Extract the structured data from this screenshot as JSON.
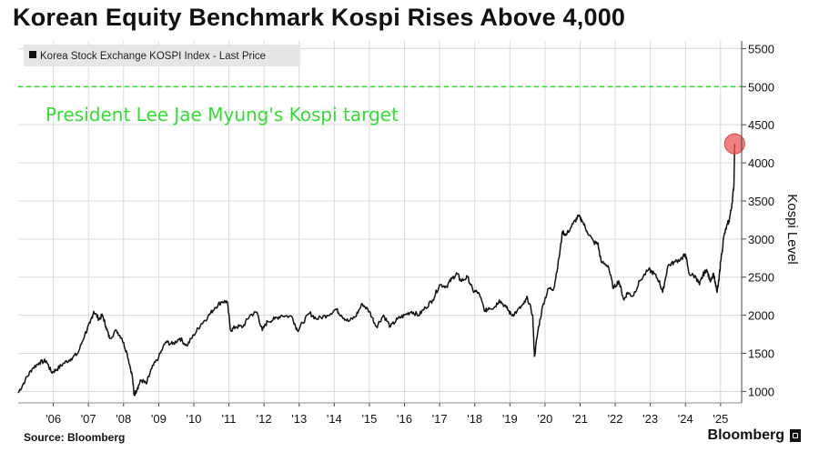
{
  "title": "Korean Equity Benchmark Kospi Rises Above 4,000",
  "source": "Source: Bloomberg",
  "brand": "Bloomberg",
  "colors": {
    "line": "#111111",
    "target": "#33dd33",
    "marker": "#ee5555",
    "grid": "#d9d9d9",
    "legendBox": "#e6e6e6"
  },
  "chart_data": {
    "type": "line",
    "title": "Korean Equity Benchmark Kospi Rises Above 4,000",
    "legend": "Korea Stock Exchange KOSPI Index - Last Price",
    "xlabel": "",
    "ylabel": "Kospi Level",
    "ylim": [
      850,
      5600
    ],
    "xlim": [
      2005.5,
      2026.1
    ],
    "yticks": [
      1000,
      1500,
      2000,
      2500,
      3000,
      3500,
      4000,
      4500,
      5000,
      5500
    ],
    "xticks": [
      {
        "label": "'06",
        "value": 2006.5
      },
      {
        "label": "'07",
        "value": 2007.5
      },
      {
        "label": "'08",
        "value": 2008.5
      },
      {
        "label": "'09",
        "value": 2009.5
      },
      {
        "label": "'10",
        "value": 2010.5
      },
      {
        "label": "'11",
        "value": 2011.5
      },
      {
        "label": "'12",
        "value": 2012.5
      },
      {
        "label": "'13",
        "value": 2013.5
      },
      {
        "label": "'14",
        "value": 2014.5
      },
      {
        "label": "'15",
        "value": 2015.5
      },
      {
        "label": "'16",
        "value": 2016.5
      },
      {
        "label": "'17",
        "value": 2017.5
      },
      {
        "label": "'18",
        "value": 2018.5
      },
      {
        "label": "'19",
        "value": 2019.5
      },
      {
        "label": "'20",
        "value": 2020.5
      },
      {
        "label": "'21",
        "value": 2021.5
      },
      {
        "label": "'22",
        "value": 2022.5
      },
      {
        "label": "'23",
        "value": 2023.5
      },
      {
        "label": "'24",
        "value": 2024.5
      },
      {
        "label": "'25",
        "value": 2025.5
      }
    ],
    "target": {
      "value": 5000,
      "label": "President Lee Jae Myung's Kospi target"
    },
    "highlight": {
      "x": 2025.9,
      "y": 4250
    },
    "series": [
      {
        "name": "Korea Stock Exchange KOSPI Index - Last Price",
        "points": [
          [
            2005.5,
            980
          ],
          [
            2005.7,
            1150
          ],
          [
            2005.9,
            1300
          ],
          [
            2006.1,
            1380
          ],
          [
            2006.3,
            1400
          ],
          [
            2006.45,
            1250
          ],
          [
            2006.6,
            1290
          ],
          [
            2006.8,
            1370
          ],
          [
            2007.0,
            1430
          ],
          [
            2007.2,
            1500
          ],
          [
            2007.4,
            1750
          ],
          [
            2007.55,
            1900
          ],
          [
            2007.65,
            2050
          ],
          [
            2007.8,
            1950
          ],
          [
            2007.9,
            2000
          ],
          [
            2008.0,
            1850
          ],
          [
            2008.1,
            1700
          ],
          [
            2008.3,
            1800
          ],
          [
            2008.45,
            1700
          ],
          [
            2008.6,
            1500
          ],
          [
            2008.75,
            1200
          ],
          [
            2008.8,
            950
          ],
          [
            2008.9,
            1050
          ],
          [
            2009.0,
            1150
          ],
          [
            2009.15,
            1100
          ],
          [
            2009.3,
            1300
          ],
          [
            2009.5,
            1450
          ],
          [
            2009.7,
            1650
          ],
          [
            2009.9,
            1620
          ],
          [
            2010.1,
            1700
          ],
          [
            2010.3,
            1600
          ],
          [
            2010.5,
            1740
          ],
          [
            2010.7,
            1880
          ],
          [
            2010.9,
            1980
          ],
          [
            2011.1,
            2100
          ],
          [
            2011.3,
            2180
          ],
          [
            2011.45,
            2180
          ],
          [
            2011.55,
            1800
          ],
          [
            2011.7,
            1850
          ],
          [
            2011.9,
            1850
          ],
          [
            2012.1,
            2000
          ],
          [
            2012.3,
            2040
          ],
          [
            2012.45,
            1800
          ],
          [
            2012.6,
            1920
          ],
          [
            2012.8,
            1950
          ],
          [
            2013.0,
            2000
          ],
          [
            2013.3,
            1980
          ],
          [
            2013.45,
            1800
          ],
          [
            2013.6,
            1900
          ],
          [
            2013.8,
            2030
          ],
          [
            2014.0,
            1950
          ],
          [
            2014.3,
            2000
          ],
          [
            2014.55,
            2080
          ],
          [
            2014.7,
            2000
          ],
          [
            2014.9,
            1920
          ],
          [
            2015.1,
            1980
          ],
          [
            2015.3,
            2150
          ],
          [
            2015.5,
            2050
          ],
          [
            2015.7,
            1850
          ],
          [
            2015.9,
            2000
          ],
          [
            2016.1,
            1850
          ],
          [
            2016.3,
            1950
          ],
          [
            2016.5,
            2000
          ],
          [
            2016.7,
            2050
          ],
          [
            2016.9,
            2000
          ],
          [
            2017.1,
            2100
          ],
          [
            2017.3,
            2200
          ],
          [
            2017.5,
            2400
          ],
          [
            2017.7,
            2380
          ],
          [
            2017.85,
            2480
          ],
          [
            2018.0,
            2550
          ],
          [
            2018.1,
            2450
          ],
          [
            2018.3,
            2500
          ],
          [
            2018.45,
            2320
          ],
          [
            2018.6,
            2300
          ],
          [
            2018.8,
            2050
          ],
          [
            2018.9,
            2100
          ],
          [
            2019.05,
            2100
          ],
          [
            2019.2,
            2200
          ],
          [
            2019.4,
            2100
          ],
          [
            2019.55,
            2000
          ],
          [
            2019.7,
            2050
          ],
          [
            2019.9,
            2150
          ],
          [
            2020.0,
            2230
          ],
          [
            2020.15,
            2000
          ],
          [
            2020.2,
            1460
          ],
          [
            2020.3,
            1800
          ],
          [
            2020.45,
            2150
          ],
          [
            2020.6,
            2350
          ],
          [
            2020.75,
            2350
          ],
          [
            2020.9,
            2750
          ],
          [
            2021.0,
            3100
          ],
          [
            2021.1,
            3050
          ],
          [
            2021.3,
            3200
          ],
          [
            2021.45,
            3300
          ],
          [
            2021.55,
            3250
          ],
          [
            2021.7,
            3100
          ],
          [
            2021.9,
            2950
          ],
          [
            2022.0,
            2950
          ],
          [
            2022.1,
            2700
          ],
          [
            2022.3,
            2650
          ],
          [
            2022.45,
            2350
          ],
          [
            2022.6,
            2450
          ],
          [
            2022.75,
            2200
          ],
          [
            2022.85,
            2300
          ],
          [
            2023.0,
            2250
          ],
          [
            2023.2,
            2450
          ],
          [
            2023.45,
            2600
          ],
          [
            2023.6,
            2550
          ],
          [
            2023.75,
            2450
          ],
          [
            2023.85,
            2300
          ],
          [
            2024.0,
            2650
          ],
          [
            2024.2,
            2700
          ],
          [
            2024.4,
            2750
          ],
          [
            2024.5,
            2800
          ],
          [
            2024.6,
            2550
          ],
          [
            2024.8,
            2500
          ],
          [
            2024.9,
            2400
          ],
          [
            2025.0,
            2530
          ],
          [
            2025.1,
            2600
          ],
          [
            2025.2,
            2450
          ],
          [
            2025.3,
            2550
          ],
          [
            2025.4,
            2300
          ],
          [
            2025.45,
            2450
          ],
          [
            2025.5,
            2700
          ],
          [
            2025.6,
            3050
          ],
          [
            2025.7,
            3200
          ],
          [
            2025.75,
            3250
          ],
          [
            2025.82,
            3450
          ],
          [
            2025.88,
            3700
          ],
          [
            2025.9,
            4250
          ]
        ]
      }
    ]
  }
}
